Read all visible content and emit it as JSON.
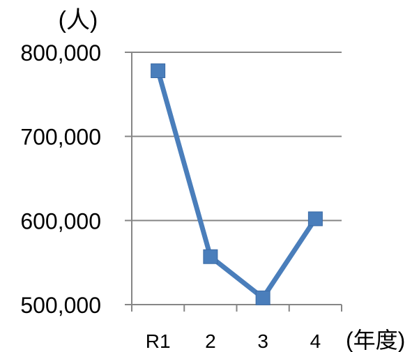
{
  "chart_data": {
    "type": "line",
    "title": "",
    "ylabel": "(人)",
    "xlabel": "(年度)",
    "categories": [
      "R1",
      "2",
      "3",
      "4"
    ],
    "series": [
      {
        "values": [
          778000,
          557000,
          508000,
          602000
        ]
      }
    ],
    "ylim": [
      500000,
      800000
    ],
    "yticks": [
      "500,000",
      "600,000",
      "700,000",
      "800,000"
    ],
    "grid": true,
    "legend": "none",
    "line_color": "#4a7ebb"
  }
}
